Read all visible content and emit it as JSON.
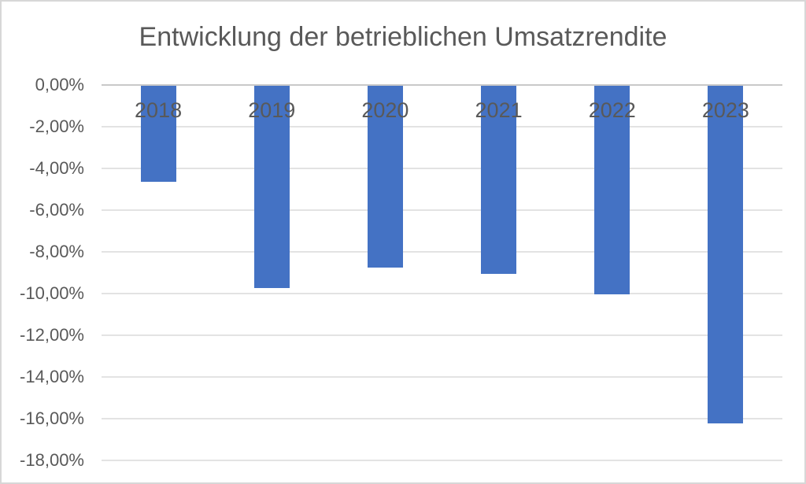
{
  "title": "Entwicklung der betrieblichen Umsatzrendite",
  "colors": {
    "bar": "#4472C4",
    "gridline": "#E3E3E3",
    "zero_line": "#C9C9C9",
    "axis_text": "#595959",
    "title_text": "#595959",
    "border": "#D7D7D7",
    "background": "#FFFFFF"
  },
  "chart_data": {
    "type": "bar",
    "title": "Entwicklung der betrieblichen Umsatzrendite",
    "categories": [
      "2018",
      "2019",
      "2020",
      "2021",
      "2022",
      "2023"
    ],
    "values": [
      -4.6,
      -9.7,
      -8.7,
      -9.0,
      -10.0,
      -16.2
    ],
    "unit": "%",
    "xlabel": "",
    "ylabel": "",
    "ylim": [
      -18,
      0
    ],
    "ytick_step": 2,
    "ytick_values": [
      0,
      -2,
      -4,
      -6,
      -8,
      -10,
      -12,
      -14,
      -16,
      -18
    ],
    "ytick_labels": [
      "0,00%",
      "-2,00%",
      "-4,00%",
      "-6,00%",
      "-8,00%",
      "-10,00%",
      "-12,00%",
      "-14,00%",
      "-16,00%",
      "-18,00%"
    ],
    "decimal_separator": ",",
    "grid": true,
    "legend": "none",
    "bar_color": "#4472C4",
    "category_label_position": "overlapping-bar-tops"
  }
}
